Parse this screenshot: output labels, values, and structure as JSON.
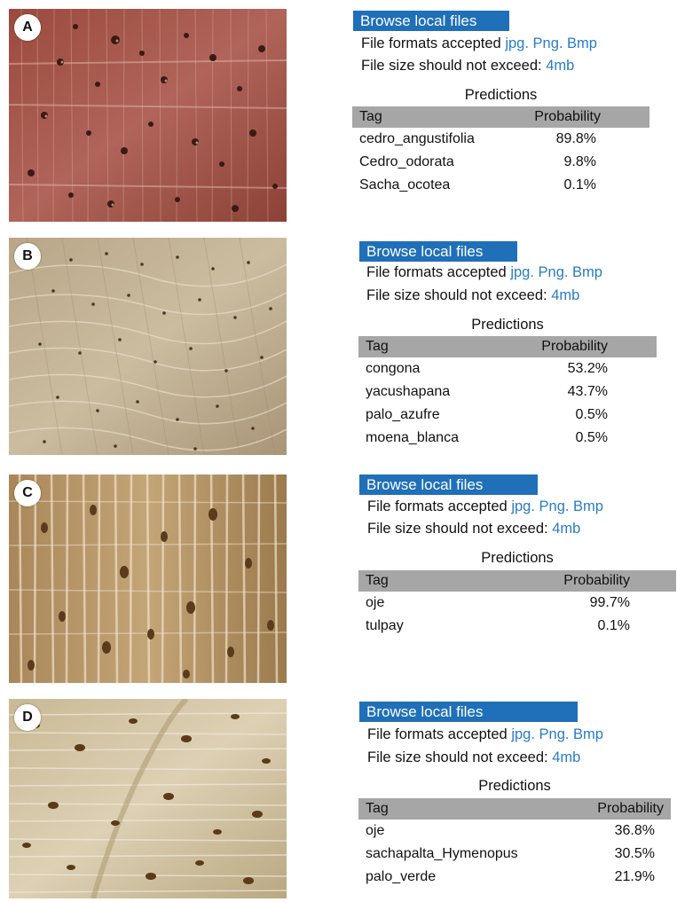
{
  "panels": [
    {
      "letter": "A",
      "browse_label": "Browse local files",
      "formats_prefix": "File formats accepted ",
      "formats_value": "jpg. Png. Bmp",
      "size_prefix": "File size should not exceed: ",
      "size_value": "4mb",
      "predictions_title": "Predictions",
      "col_tag": "Tag",
      "col_prob": "Probability",
      "rows": [
        {
          "tag": "cedro_angustifolia",
          "prob": "89.8%"
        },
        {
          "tag": "Cedro_odorata",
          "prob": "9.8%"
        },
        {
          "tag": "Sacha_ocotea",
          "prob": "0.1%"
        }
      ]
    },
    {
      "letter": "B",
      "browse_label": "Browse local files",
      "formats_prefix": "File formats accepted ",
      "formats_value": "jpg. Png. Bmp",
      "size_prefix": "File size should not exceed: ",
      "size_value": "4mb",
      "predictions_title": "Predictions",
      "col_tag": "Tag",
      "col_prob": "Probability",
      "rows": [
        {
          "tag": "congona",
          "prob": "53.2%"
        },
        {
          "tag": "yacushapana",
          "prob": "43.7%"
        },
        {
          "tag": "palo_azufre",
          "prob": "0.5%"
        },
        {
          "tag": "moena_blanca",
          "prob": "0.5%"
        }
      ]
    },
    {
      "letter": "C",
      "browse_label": "Browse local files",
      "formats_prefix": "File formats accepted ",
      "formats_value": "jpg. Png. Bmp",
      "size_prefix": "File size should not exceed: ",
      "size_value": "4mb",
      "predictions_title": "Predictions",
      "col_tag": "Tag",
      "col_prob": "Probability",
      "rows": [
        {
          "tag": "oje",
          "prob": "99.7%"
        },
        {
          "tag": "tulpay",
          "prob": "0.1%"
        }
      ]
    },
    {
      "letter": "D",
      "browse_label": "Browse local files",
      "formats_prefix": "File formats accepted ",
      "formats_value": "jpg. Png. Bmp",
      "size_prefix": "File size should not exceed: ",
      "size_value": "4mb",
      "predictions_title": "Predictions",
      "col_tag": "Tag",
      "col_prob": "Probability",
      "rows": [
        {
          "tag": "oje",
          "prob": "36.8%"
        },
        {
          "tag": "sachapalta_Hymenopus",
          "prob": "30.5%"
        },
        {
          "tag": "palo_verde",
          "prob": "21.9%"
        }
      ]
    }
  ],
  "colors": {
    "button_bg": "#1f6fb9",
    "accent_text": "#2a7bc4",
    "table_header_bg": "#a6a6a6"
  }
}
